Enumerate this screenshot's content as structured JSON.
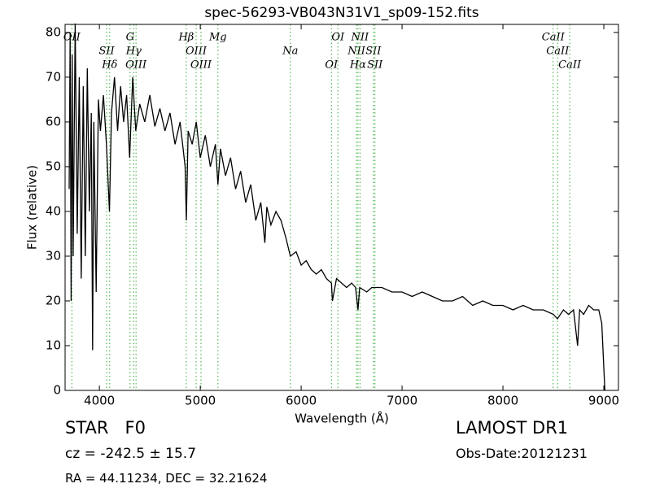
{
  "chart_data": {
    "type": "line",
    "title": "spec-56293-VB043N31V1_sp09-152.fits",
    "xlabel": "Wavelength (Å)",
    "ylabel": "Flux (relative)",
    "xlim": [
      3660,
      9145
    ],
    "ylim": [
      0,
      81.8
    ],
    "xticks": [
      4000,
      5000,
      6000,
      7000,
      8000,
      9000
    ],
    "yticks": [
      0,
      10,
      20,
      30,
      40,
      50,
      60,
      70,
      80
    ],
    "color": "#000000",
    "line_color": "#33aa33",
    "x": [
      3700,
      3710,
      3720,
      3730,
      3740,
      3760,
      3780,
      3800,
      3820,
      3840,
      3860,
      3880,
      3900,
      3920,
      3933,
      3945,
      3968,
      3990,
      4010,
      4040,
      4070,
      4100,
      4120,
      4150,
      4180,
      4210,
      4240,
      4270,
      4300,
      4330,
      4360,
      4400,
      4450,
      4500,
      4550,
      4600,
      4650,
      4700,
      4750,
      4800,
      4850,
      4862,
      4880,
      4920,
      4960,
      5000,
      5050,
      5100,
      5150,
      5175,
      5200,
      5250,
      5300,
      5350,
      5400,
      5450,
      5500,
      5550,
      5600,
      5640,
      5660,
      5700,
      5750,
      5800,
      5850,
      5893,
      5950,
      6000,
      6050,
      6100,
      6150,
      6200,
      6250,
      6300,
      6310,
      6350,
      6400,
      6450,
      6500,
      6540,
      6563,
      6580,
      6650,
      6700,
      6800,
      6900,
      7000,
      7100,
      7200,
      7300,
      7400,
      7500,
      7600,
      7700,
      7800,
      7900,
      8000,
      8100,
      8200,
      8300,
      8400,
      8500,
      8540,
      8600,
      8650,
      8700,
      8740,
      8760,
      8800,
      8850,
      8900,
      8950,
      8980,
      9010
    ],
    "values": [
      45,
      80,
      20,
      75,
      30,
      82,
      35,
      70,
      25,
      68,
      30,
      72,
      40,
      62,
      9,
      60,
      22,
      65,
      58,
      66,
      55,
      40,
      62,
      70,
      58,
      68,
      60,
      66,
      52,
      70,
      58,
      64,
      60,
      66,
      59,
      63,
      58,
      62,
      55,
      60,
      50,
      38,
      58,
      55,
      60,
      52,
      57,
      50,
      55,
      46,
      54,
      48,
      52,
      45,
      49,
      42,
      46,
      38,
      42,
      33,
      41,
      37,
      40,
      38,
      34,
      30,
      31,
      28,
      29,
      27,
      26,
      27,
      25,
      24,
      20,
      25,
      24,
      23,
      24,
      23,
      18,
      23,
      22,
      23,
      23,
      22,
      22,
      21,
      22,
      21,
      20,
      20,
      21,
      19,
      20,
      19,
      19,
      18,
      19,
      18,
      18,
      17,
      16,
      18,
      17,
      18,
      10,
      18,
      17,
      19,
      18,
      18,
      15,
      0
    ],
    "lines": [
      {
        "wave": 3727,
        "label": "OII"
      },
      {
        "wave": 4072,
        "label": "SII"
      },
      {
        "wave": 4102,
        "label": "Hδ"
      },
      {
        "wave": 4304,
        "label": "G"
      },
      {
        "wave": 4340,
        "label": "Hγ"
      },
      {
        "wave": 4363,
        "label": "OIII"
      },
      {
        "wave": 4861,
        "label": "Hβ"
      },
      {
        "wave": 4959,
        "label": "OIII"
      },
      {
        "wave": 5007,
        "label": "OIII"
      },
      {
        "wave": 5175,
        "label": "Mg"
      },
      {
        "wave": 5893,
        "label": "Na"
      },
      {
        "wave": 6300,
        "label": "OI"
      },
      {
        "wave": 6364,
        "label": "OI"
      },
      {
        "wave": 6548,
        "label": "NII"
      },
      {
        "wave": 6563,
        "label": "Hα"
      },
      {
        "wave": 6583,
        "label": "NII"
      },
      {
        "wave": 6716,
        "label": "SII"
      },
      {
        "wave": 6731,
        "label": "SII"
      },
      {
        "wave": 8498,
        "label": "CaII"
      },
      {
        "wave": 8542,
        "label": "CaII"
      },
      {
        "wave": 8662,
        "label": "CaII"
      }
    ],
    "annotations": [
      "STAR   F0",
      "cz = -242.5 ± 15.7",
      "RA = 44.11234, DEC = 32.21624",
      "LAMOST DR1",
      "Obs-Date:20121231"
    ]
  }
}
